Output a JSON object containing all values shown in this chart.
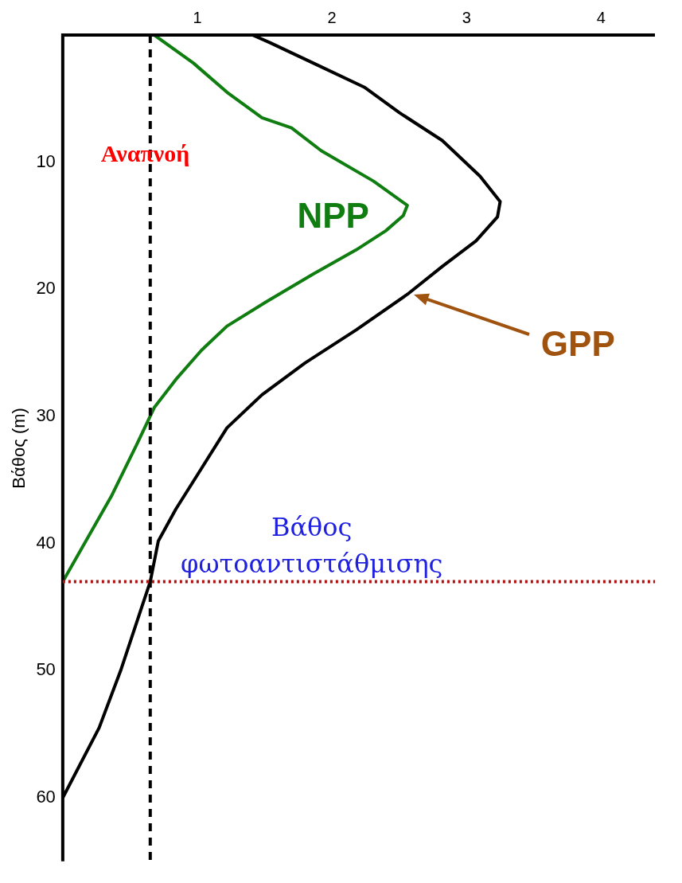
{
  "chart_data": {
    "type": "line",
    "ylabel": "Βάθος (m)",
    "xlim": [
      0,
      4.4
    ],
    "xticks": [
      1,
      2,
      3,
      4
    ],
    "ylim": [
      65,
      0
    ],
    "yticks": [
      10,
      20,
      30,
      40,
      50,
      60
    ],
    "grid": false,
    "legend": false,
    "marker": "none",
    "line_style": "solid",
    "series": [
      {
        "name": "NPP",
        "color": "#0f7d0f",
        "x": [
          0.68,
          0.97,
          1.22,
          1.48,
          1.7,
          1.92,
          2.31,
          2.56,
          2.53,
          2.4,
          2.18,
          1.86,
          1.51,
          1.22,
          1.03,
          0.84,
          0.68,
          0.55,
          0.36,
          0
        ],
        "values": [
          0,
          2.2,
          4.5,
          6.5,
          7.3,
          9.1,
          11.5,
          13.4,
          14.2,
          15.4,
          16.9,
          18.8,
          21,
          22.9,
          24.8,
          27.1,
          29.3,
          32.2,
          36.3,
          43
        ]
      },
      {
        "name": "GPP",
        "color": "#000000",
        "x": [
          1.41,
          1.54,
          1.86,
          2.24,
          2.5,
          2.82,
          3.1,
          3.25,
          3.23,
          3.07,
          2.82,
          2.56,
          2.18,
          1.8,
          1.48,
          1.22,
          1.03,
          0.84,
          0.71,
          0.65,
          0.59,
          0.43,
          0.27,
          0
        ],
        "values": [
          0,
          0.6,
          2.2,
          4.1,
          6.1,
          8.3,
          11.1,
          13.1,
          14.3,
          16.2,
          18.2,
          20.4,
          23.2,
          25.8,
          28.3,
          30.9,
          34.1,
          37.3,
          39.8,
          43,
          44.9,
          50,
          54.5,
          60
        ]
      }
    ],
    "ref_lines": [
      {
        "axis": "x",
        "value": 0.65,
        "label": "Αναπνοή",
        "color": "#000000",
        "line_style": "dashed"
      },
      {
        "axis": "y",
        "value": 43,
        "label": "Βάθος φωτοαντιστάθμισης",
        "color": "#b01010",
        "line_style": "dotted"
      }
    ]
  }
}
